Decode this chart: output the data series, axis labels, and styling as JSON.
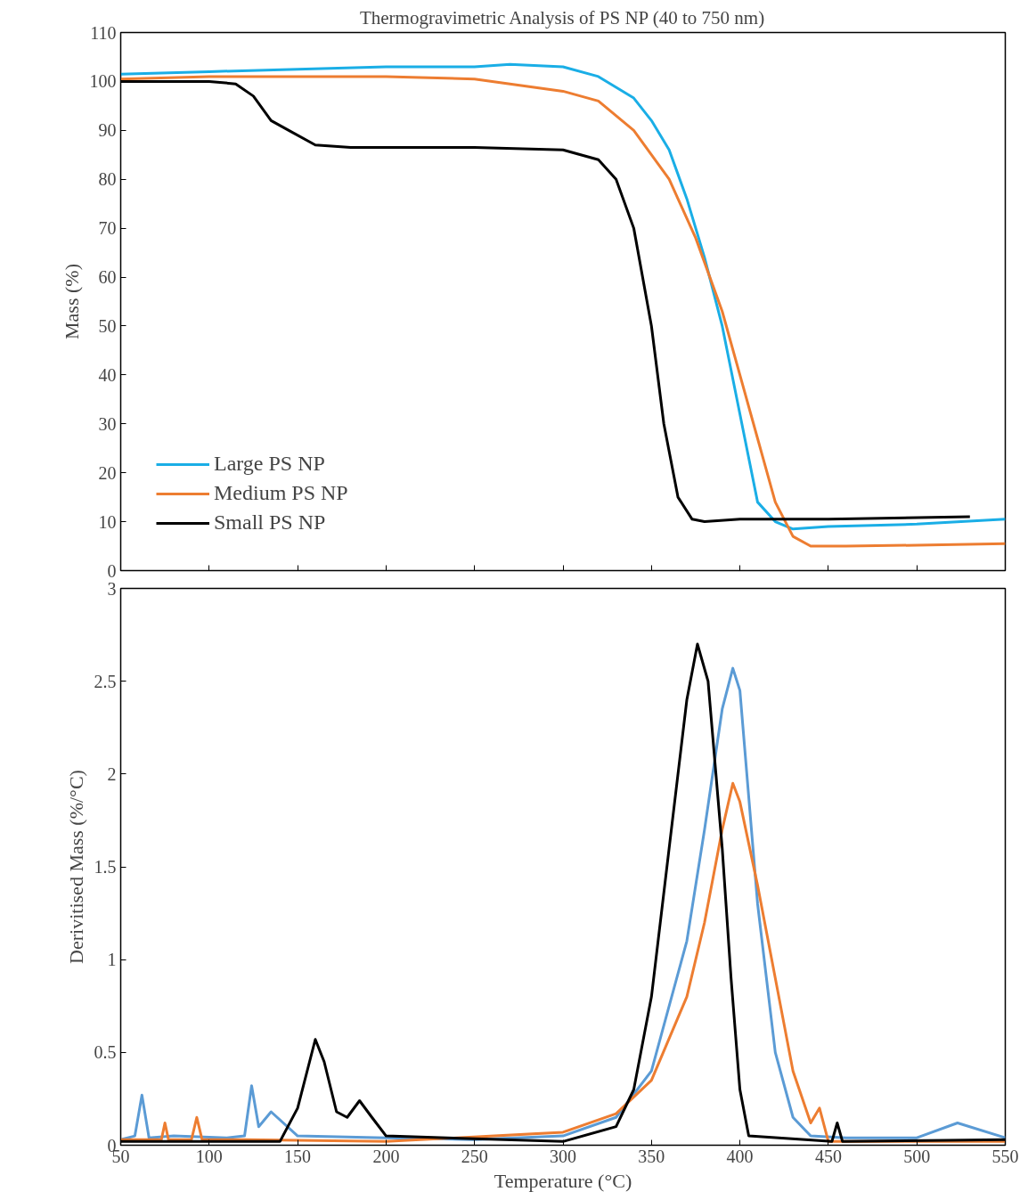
{
  "chart_data": [
    {
      "type": "line",
      "title": "Thermogravimetric Analysis of PS NP (40 to 750 nm)",
      "ylabel": "Mass (%)",
      "xlim": [
        50,
        550
      ],
      "xticks": [
        50,
        100,
        150,
        200,
        250,
        300,
        350,
        400,
        450,
        500,
        550
      ],
      "ylim": [
        0,
        110
      ],
      "yticks": [
        0,
        10,
        20,
        30,
        40,
        50,
        60,
        70,
        80,
        90,
        100,
        110
      ],
      "tick_labels": "y",
      "legend": "bottom left",
      "line_style": "solid",
      "series": [
        {
          "name": "Large PS NP",
          "color": "#1aaee6",
          "x": [
            50,
            100,
            150,
            200,
            250,
            270,
            300,
            320,
            340,
            350,
            360,
            370,
            380,
            390,
            400,
            410,
            420,
            430,
            450,
            500,
            550
          ],
          "values": [
            101.5,
            102,
            102.5,
            103,
            103,
            103.5,
            103,
            101,
            96.6,
            92,
            86,
            76,
            64,
            50,
            32,
            14,
            10,
            8.5,
            9,
            9.5,
            10.5
          ]
        },
        {
          "name": "Medium PS NP",
          "color": "#ed7d31",
          "x": [
            50,
            100,
            150,
            200,
            250,
            300,
            320,
            340,
            360,
            375,
            390,
            400,
            410,
            420,
            430,
            440,
            460,
            500,
            550
          ],
          "values": [
            100.5,
            101,
            101,
            101,
            100.5,
            98,
            96,
            90,
            80,
            68,
            53,
            40,
            27,
            14,
            7,
            5,
            5,
            5.2,
            5.5
          ]
        },
        {
          "name": "Small PS NP",
          "color": "#000000",
          "x": [
            50,
            100,
            115,
            125,
            135,
            145,
            160,
            180,
            250,
            300,
            320,
            330,
            340,
            350,
            357,
            365,
            373,
            380,
            400,
            450,
            530
          ],
          "values": [
            100,
            100,
            99.5,
            97,
            92,
            90,
            87,
            86.5,
            86.5,
            86,
            84,
            80,
            70,
            50,
            30,
            15,
            10.5,
            10,
            10.5,
            10.5,
            11
          ]
        }
      ]
    },
    {
      "type": "line",
      "xlabel": "Temperature (°C)",
      "ylabel": "Derivitised Mass (%/°C)",
      "xlim": [
        50,
        550
      ],
      "xticks": [
        50,
        100,
        150,
        200,
        250,
        300,
        350,
        400,
        450,
        500,
        550
      ],
      "ylim": [
        0,
        3
      ],
      "yticks": [
        0,
        0.5,
        1,
        1.5,
        2,
        2.5,
        3
      ],
      "line_style": "solid",
      "series": [
        {
          "color": "#5b9bd5",
          "x": [
            50,
            58,
            62,
            66,
            80,
            110,
            120,
            124,
            128,
            135,
            150,
            200,
            250,
            300,
            330,
            350,
            370,
            380,
            390,
            396,
            400,
            410,
            420,
            430,
            440,
            460,
            500,
            523,
            550
          ],
          "values": [
            0.03,
            0.05,
            0.27,
            0.04,
            0.05,
            0.04,
            0.05,
            0.32,
            0.1,
            0.18,
            0.05,
            0.04,
            0.03,
            0.05,
            0.15,
            0.4,
            1.1,
            1.7,
            2.35,
            2.57,
            2.45,
            1.3,
            0.5,
            0.15,
            0.05,
            0.04,
            0.04,
            0.12,
            0.04
          ]
        },
        {
          "color": "#ed7d31",
          "x": [
            50,
            73,
            75,
            77,
            90,
            93,
            96,
            120,
            200,
            300,
            330,
            350,
            370,
            380,
            390,
            396,
            400,
            410,
            420,
            430,
            440,
            445,
            450,
            500,
            550
          ],
          "values": [
            0.03,
            0.03,
            0.12,
            0.03,
            0.03,
            0.15,
            0.03,
            0.03,
            0.02,
            0.07,
            0.17,
            0.35,
            0.8,
            1.2,
            1.7,
            1.95,
            1.85,
            1.4,
            0.9,
            0.4,
            0.12,
            0.2,
            0.02,
            0.02,
            0.02
          ]
        },
        {
          "color": "#000000",
          "x": [
            50,
            140,
            150,
            160,
            165,
            172,
            178,
            185,
            192,
            200,
            300,
            330,
            340,
            350,
            360,
            370,
            376,
            382,
            390,
            395,
            400,
            405,
            452,
            455,
            458,
            550
          ],
          "values": [
            0.02,
            0.02,
            0.2,
            0.57,
            0.45,
            0.18,
            0.15,
            0.24,
            0.15,
            0.05,
            0.02,
            0.1,
            0.3,
            0.8,
            1.6,
            2.4,
            2.7,
            2.5,
            1.6,
            0.9,
            0.3,
            0.05,
            0.02,
            0.12,
            0.02,
            0.03
          ]
        }
      ]
    }
  ]
}
